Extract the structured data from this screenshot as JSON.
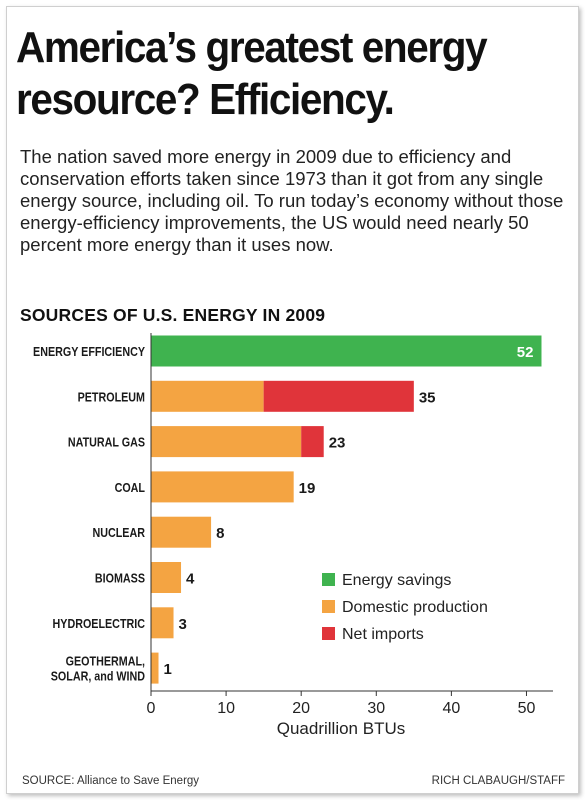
{
  "headline": {
    "line1": "America’s greatest energy",
    "line2": "resource? Efficiency."
  },
  "intro_text": "The nation saved more energy in 2009 due to efficiency and conservation efforts taken since 1973 than it got from any single energy source, including oil. To run today’s economy without those energy-efficiency improvements, the US would need nearly 50 percent more energy than it uses now.",
  "footer": {
    "source": "SOURCE: Alliance to Save Energy",
    "credit": "RICH CLABAUGH/STAFF"
  },
  "colors": {
    "energy_savings": "#3fb34f",
    "domestic_production": "#f4a442",
    "net_imports": "#e0343a"
  },
  "chart_data": {
    "type": "bar",
    "orientation": "horizontal",
    "stacked": true,
    "title": "SOURCES OF U.S. ENERGY IN 2009",
    "xlabel": "Quadrillion BTUs",
    "ylabel": "",
    "xlim": [
      0,
      53
    ],
    "x_ticks": [
      0,
      10,
      20,
      30,
      40,
      50
    ],
    "grid": false,
    "legend_position": "bottom-right",
    "categories": [
      [
        "ENERGY EFFICIENCY"
      ],
      [
        "PETROLEUM"
      ],
      [
        "NATURAL GAS"
      ],
      [
        "COAL"
      ],
      [
        "NUCLEAR"
      ],
      [
        "BIOMASS"
      ],
      [
        "HYDROELECTRIC"
      ],
      [
        "GEOTHERMAL,",
        "SOLAR, and WIND"
      ]
    ],
    "series": [
      {
        "name": "Energy savings",
        "color": "#3fb34f",
        "values": [
          52,
          0,
          0,
          0,
          0,
          0,
          0,
          0
        ]
      },
      {
        "name": "Domestic production",
        "color": "#f4a442",
        "values": [
          0,
          15,
          20,
          19,
          8,
          4,
          3,
          1
        ]
      },
      {
        "name": "Net imports",
        "color": "#e0343a",
        "values": [
          0,
          20,
          3,
          0,
          0,
          0,
          0,
          0
        ]
      }
    ],
    "totals": [
      52,
      35,
      23,
      19,
      8,
      4,
      3,
      1
    ]
  }
}
